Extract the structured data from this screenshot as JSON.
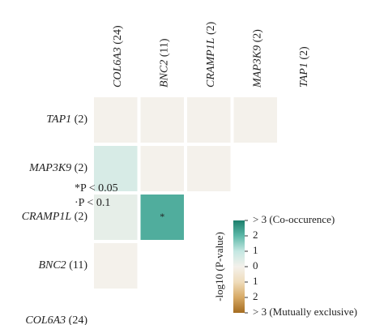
{
  "chart_data": {
    "type": "heatmap",
    "rows": [
      {
        "gene": "TAP1",
        "count": "(2)"
      },
      {
        "gene": "MAP3K9",
        "count": "(2)"
      },
      {
        "gene": "CRAMP1L",
        "count": "(2)"
      },
      {
        "gene": "BNC2",
        "count": "(11)"
      },
      {
        "gene": "COL6A3",
        "count": "(24)"
      }
    ],
    "columns": [
      {
        "gene": "COL6A3",
        "count": "(24)"
      },
      {
        "gene": "BNC2",
        "count": "(11)"
      },
      {
        "gene": "CRAMP1L",
        "count": "(2)"
      },
      {
        "gene": "MAP3K9",
        "count": "(2)"
      },
      {
        "gene": "TAP1",
        "count": "(2)"
      }
    ],
    "values": [
      [
        0,
        0,
        0,
        0,
        null
      ],
      [
        0.6,
        0,
        0,
        null,
        null
      ],
      [
        0.3,
        2.2,
        null,
        null,
        null
      ],
      [
        0,
        null,
        null,
        null,
        null
      ],
      [
        null,
        null,
        null,
        null,
        null
      ]
    ],
    "cell_labels": [
      [
        null,
        null,
        null,
        null,
        null
      ],
      [
        null,
        null,
        null,
        null,
        null
      ],
      [
        null,
        "*",
        null,
        null,
        null
      ],
      [
        null,
        null,
        null,
        null,
        null
      ],
      [
        null,
        null,
        null,
        null,
        null
      ]
    ],
    "significance_legend": [
      "*P < 0.05",
      "·P < 0.1"
    ],
    "colorbar_label": "-log10 (P-value)",
    "clim": [
      -3,
      3
    ],
    "colors": [
      "#a46c20",
      "#d7a965",
      "#efdcbb",
      "#f4f1eb",
      "#c4e7e2",
      "#5db9a9",
      "#1c7f6c"
    ],
    "cticks": [
      {
        "value": 3,
        "label": "> 3 (Co-occurence)"
      },
      2,
      1,
      0,
      {
        "value": -1,
        "label": "1"
      },
      {
        "value": -2,
        "label": "2"
      },
      {
        "value": -3,
        "label": "> 3 (Mutually exclusive)"
      }
    ]
  }
}
